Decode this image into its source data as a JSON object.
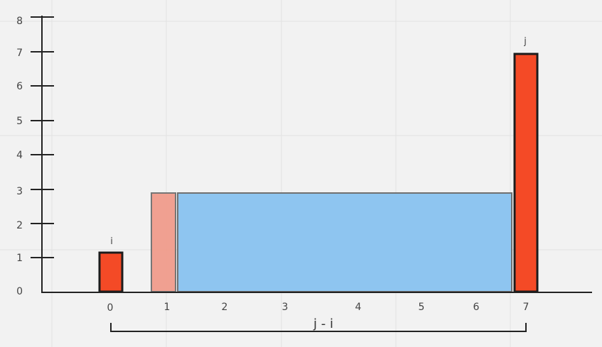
{
  "diagram": {
    "y_tick_labels": [
      "0",
      "1",
      "2",
      "3",
      "4",
      "5",
      "6",
      "7",
      "8"
    ],
    "x_tick_labels": [
      "0",
      "1",
      "2",
      "3",
      "4",
      "5",
      "6",
      "7"
    ],
    "marker_i": "i",
    "marker_j": "j",
    "span_label": "j - i",
    "colors": {
      "background": "#f2f2f2",
      "grid": "#e2e2e2",
      "axis": "#222222",
      "bar_red": "#f44a26",
      "bar_outline": "#1c1c1c",
      "bar_faded": "#f09c8c",
      "area_blue": "#8ec5f0",
      "area_outline": "#707070"
    }
  },
  "chart_data": {
    "type": "bar",
    "categories": [
      "0",
      "7"
    ],
    "values": [
      1.15,
      6.95
    ],
    "highlight": {
      "faded_bar": {
        "x": 1,
        "height": 2.85
      },
      "area_rect": {
        "from_x": 1,
        "to_x": 7,
        "height": 2.85
      }
    },
    "annotations": [
      "i",
      "j",
      "j - i"
    ],
    "ylim": [
      0,
      8
    ],
    "grid": true
  }
}
